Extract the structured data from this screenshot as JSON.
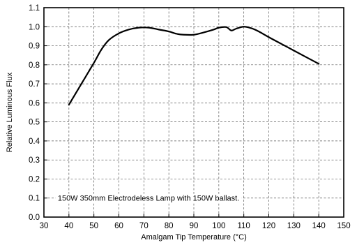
{
  "chart_data": {
    "type": "line",
    "title": "",
    "xlabel": "Amalgam Tip Temperature (°C)",
    "ylabel": "Relative Luminous Flux",
    "xlim": [
      30,
      150
    ],
    "ylim": [
      0.0,
      1.1
    ],
    "x_ticks": [
      30,
      40,
      50,
      60,
      70,
      80,
      90,
      100,
      110,
      120,
      130,
      140,
      150
    ],
    "y_ticks": [
      0.0,
      0.1,
      0.2,
      0.3,
      0.4,
      0.5,
      0.6,
      0.7,
      0.8,
      0.9,
      1.0,
      1.1
    ],
    "grid": true,
    "annotation": "150W 350mm Electrodeless Lamp with 150W ballast.",
    "series": [
      {
        "x": [
          40,
          45,
          50,
          53,
          56,
          60,
          64,
          68,
          72,
          76,
          80,
          83,
          86,
          90,
          94,
          98,
          100,
          103,
          105,
          107,
          110,
          113,
          116,
          120,
          125,
          130,
          135,
          140
        ],
        "y": [
          0.59,
          0.7,
          0.81,
          0.88,
          0.93,
          0.965,
          0.985,
          0.995,
          0.995,
          0.985,
          0.975,
          0.963,
          0.958,
          0.958,
          0.97,
          0.985,
          0.995,
          0.998,
          0.98,
          0.99,
          1.0,
          0.992,
          0.975,
          0.945,
          0.91,
          0.875,
          0.84,
          0.805
        ]
      }
    ]
  }
}
